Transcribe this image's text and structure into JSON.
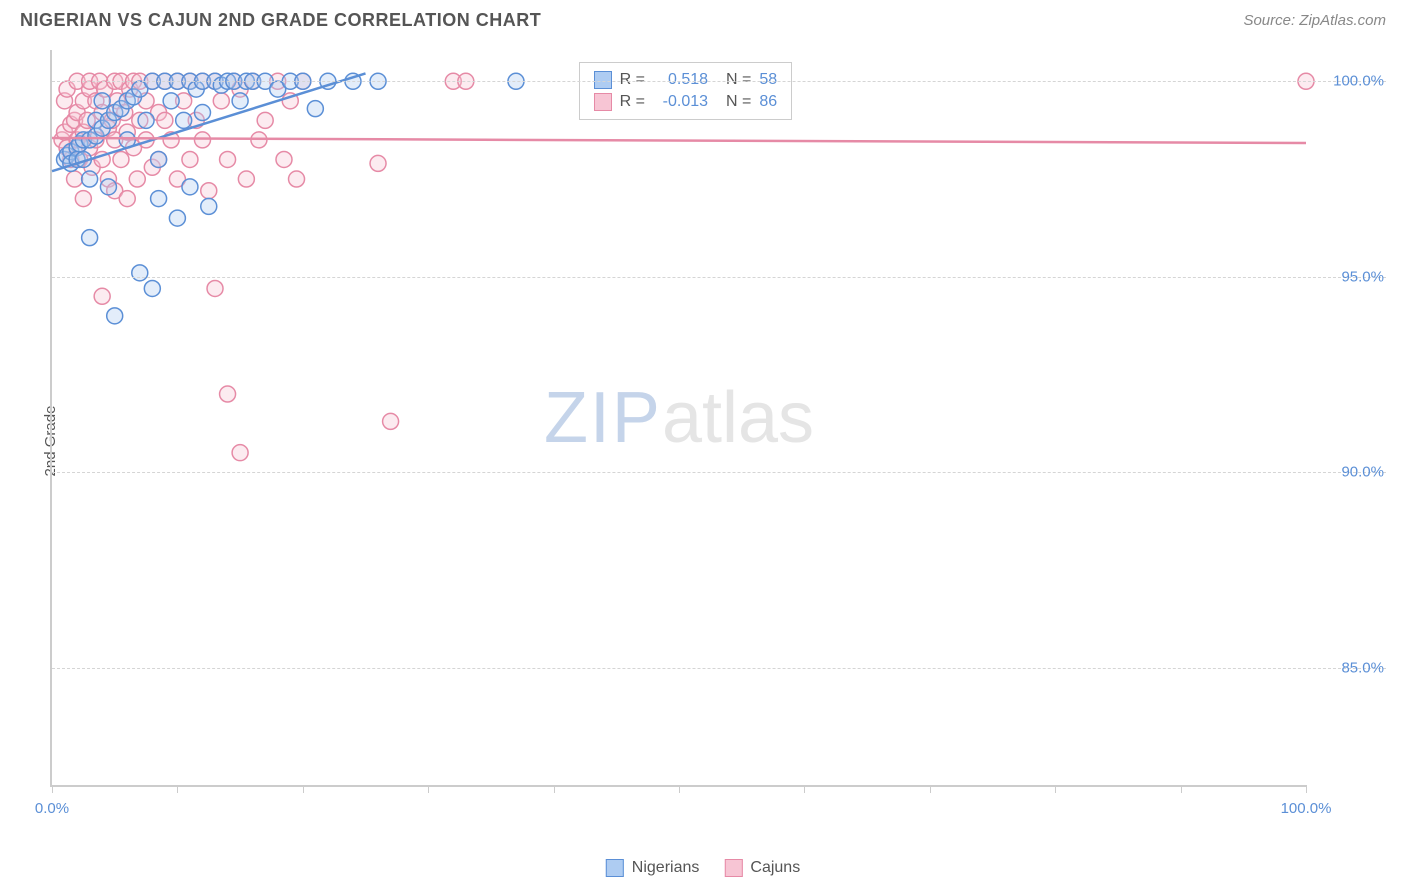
{
  "title": "NIGERIAN VS CAJUN 2ND GRADE CORRELATION CHART",
  "source": "Source: ZipAtlas.com",
  "ylabel": "2nd Grade",
  "watermark": {
    "zip": "ZIP",
    "atlas": "atlas"
  },
  "colors": {
    "series_a_fill": "#aeccf2",
    "series_a_stroke": "#5b8fd6",
    "series_b_fill": "#f7c5d4",
    "series_b_stroke": "#e68aa6",
    "axis": "#cccccc",
    "grid": "#d5d5d5",
    "tick_text": "#5b8fd6",
    "title_text": "#555555"
  },
  "chart": {
    "type": "scatter",
    "xlim": [
      0,
      100
    ],
    "ylim": [
      82,
      100.8
    ],
    "yticks": [
      {
        "v": 100,
        "label": "100.0%"
      },
      {
        "v": 95,
        "label": "95.0%"
      },
      {
        "v": 90,
        "label": "90.0%"
      },
      {
        "v": 85,
        "label": "85.0%"
      }
    ],
    "xticks_major": [
      0,
      100
    ],
    "xticks_minor": [
      10,
      20,
      30,
      40,
      50,
      60,
      70,
      80,
      90
    ],
    "xtick_labels": {
      "0": "0.0%",
      "100": "100.0%"
    },
    "marker_radius": 8,
    "marker_fill_opacity": 0.35,
    "line_width": 2.5,
    "series": [
      {
        "name": "Nigerians",
        "color_fill": "#aeccf2",
        "color_stroke": "#5b8fd6",
        "r_label": "R =",
        "r_value": "0.518",
        "n_label": "N =",
        "n_value": "58",
        "trend": {
          "x1": 0,
          "y1": 97.7,
          "x2": 25,
          "y2": 100.2
        },
        "points": [
          [
            1.0,
            98.0
          ],
          [
            1.2,
            98.1
          ],
          [
            1.5,
            98.2
          ],
          [
            1.5,
            97.9
          ],
          [
            2.0,
            98.3
          ],
          [
            2.0,
            98.0
          ],
          [
            2.2,
            98.4
          ],
          [
            2.5,
            98.5
          ],
          [
            2.5,
            98.0
          ],
          [
            3.0,
            98.5
          ],
          [
            3.0,
            97.5
          ],
          [
            3.0,
            96.0
          ],
          [
            3.5,
            98.6
          ],
          [
            3.5,
            99.0
          ],
          [
            4.0,
            98.8
          ],
          [
            4.0,
            99.5
          ],
          [
            4.5,
            99.0
          ],
          [
            4.5,
            97.3
          ],
          [
            5.0,
            99.2
          ],
          [
            5.0,
            94.0
          ],
          [
            5.5,
            99.3
          ],
          [
            6.0,
            99.5
          ],
          [
            6.0,
            98.5
          ],
          [
            6.5,
            99.6
          ],
          [
            7.0,
            99.8
          ],
          [
            7.0,
            95.1
          ],
          [
            7.5,
            99.0
          ],
          [
            8.0,
            100.0
          ],
          [
            8.0,
            94.7
          ],
          [
            8.5,
            98.0
          ],
          [
            8.5,
            97.0
          ],
          [
            9.0,
            100.0
          ],
          [
            9.5,
            99.5
          ],
          [
            10.0,
            100.0
          ],
          [
            10.0,
            96.5
          ],
          [
            10.5,
            99.0
          ],
          [
            11.0,
            100.0
          ],
          [
            11.0,
            97.3
          ],
          [
            11.5,
            99.8
          ],
          [
            12.0,
            100.0
          ],
          [
            12.0,
            99.2
          ],
          [
            12.5,
            96.8
          ],
          [
            13.0,
            100.0
          ],
          [
            13.5,
            99.9
          ],
          [
            14.0,
            100.0
          ],
          [
            14.5,
            100.0
          ],
          [
            15.0,
            99.5
          ],
          [
            15.5,
            100.0
          ],
          [
            16.0,
            100.0
          ],
          [
            17.0,
            100.0
          ],
          [
            18.0,
            99.8
          ],
          [
            19.0,
            100.0
          ],
          [
            20.0,
            100.0
          ],
          [
            21.0,
            99.3
          ],
          [
            22.0,
            100.0
          ],
          [
            24.0,
            100.0
          ],
          [
            26.0,
            100.0
          ],
          [
            37.0,
            100.0
          ]
        ]
      },
      {
        "name": "Cajuns",
        "color_fill": "#f7c5d4",
        "color_stroke": "#e68aa6",
        "r_label": "R =",
        "r_value": "-0.013",
        "n_label": "N =",
        "n_value": "86",
        "trend": {
          "x1": 0,
          "y1": 98.55,
          "x2": 100,
          "y2": 98.42
        },
        "points": [
          [
            0.8,
            98.5
          ],
          [
            1.0,
            98.7
          ],
          [
            1.0,
            99.5
          ],
          [
            1.2,
            98.3
          ],
          [
            1.2,
            99.8
          ],
          [
            1.5,
            98.9
          ],
          [
            1.5,
            98.0
          ],
          [
            1.8,
            99.0
          ],
          [
            1.8,
            97.5
          ],
          [
            2.0,
            99.2
          ],
          [
            2.0,
            98.5
          ],
          [
            2.0,
            100.0
          ],
          [
            2.2,
            98.0
          ],
          [
            2.5,
            99.5
          ],
          [
            2.5,
            98.7
          ],
          [
            2.5,
            97.0
          ],
          [
            2.8,
            99.0
          ],
          [
            3.0,
            99.8
          ],
          [
            3.0,
            98.3
          ],
          [
            3.0,
            100.0
          ],
          [
            3.2,
            97.8
          ],
          [
            3.5,
            99.5
          ],
          [
            3.5,
            98.5
          ],
          [
            3.8,
            100.0
          ],
          [
            4.0,
            98.0
          ],
          [
            4.0,
            99.2
          ],
          [
            4.0,
            94.5
          ],
          [
            4.2,
            99.8
          ],
          [
            4.5,
            98.8
          ],
          [
            4.5,
            97.5
          ],
          [
            4.8,
            99.0
          ],
          [
            5.0,
            100.0
          ],
          [
            5.0,
            98.5
          ],
          [
            5.0,
            97.2
          ],
          [
            5.2,
            99.5
          ],
          [
            5.5,
            98.0
          ],
          [
            5.5,
            100.0
          ],
          [
            5.8,
            99.2
          ],
          [
            6.0,
            98.7
          ],
          [
            6.0,
            97.0
          ],
          [
            6.2,
            99.8
          ],
          [
            6.5,
            98.3
          ],
          [
            6.5,
            100.0
          ],
          [
            6.8,
            97.5
          ],
          [
            7.0,
            99.0
          ],
          [
            7.0,
            100.0
          ],
          [
            7.5,
            98.5
          ],
          [
            7.5,
            99.5
          ],
          [
            8.0,
            100.0
          ],
          [
            8.0,
            97.8
          ],
          [
            8.5,
            99.2
          ],
          [
            8.5,
            98.0
          ],
          [
            9.0,
            100.0
          ],
          [
            9.0,
            99.0
          ],
          [
            9.5,
            98.5
          ],
          [
            10.0,
            100.0
          ],
          [
            10.0,
            97.5
          ],
          [
            10.5,
            99.5
          ],
          [
            11.0,
            98.0
          ],
          [
            11.0,
            100.0
          ],
          [
            11.5,
            99.0
          ],
          [
            12.0,
            100.0
          ],
          [
            12.0,
            98.5
          ],
          [
            12.5,
            97.2
          ],
          [
            13.0,
            100.0
          ],
          [
            13.0,
            94.7
          ],
          [
            13.5,
            99.5
          ],
          [
            14.0,
            98.0
          ],
          [
            14.0,
            92.0
          ],
          [
            14.5,
            100.0
          ],
          [
            15.0,
            90.5
          ],
          [
            15.0,
            99.8
          ],
          [
            15.5,
            97.5
          ],
          [
            16.0,
            100.0
          ],
          [
            16.5,
            98.5
          ],
          [
            17.0,
            99.0
          ],
          [
            18.0,
            100.0
          ],
          [
            18.5,
            98.0
          ],
          [
            19.0,
            99.5
          ],
          [
            19.5,
            97.5
          ],
          [
            20.0,
            100.0
          ],
          [
            26.0,
            97.9
          ],
          [
            27.0,
            91.3
          ],
          [
            32.0,
            100.0
          ],
          [
            33.0,
            100.0
          ],
          [
            100.0,
            100.0
          ]
        ]
      }
    ]
  },
  "bottom_legend": [
    {
      "label": "Nigerians",
      "fill": "#aeccf2",
      "stroke": "#5b8fd6"
    },
    {
      "label": "Cajuns",
      "fill": "#f7c5d4",
      "stroke": "#e68aa6"
    }
  ]
}
